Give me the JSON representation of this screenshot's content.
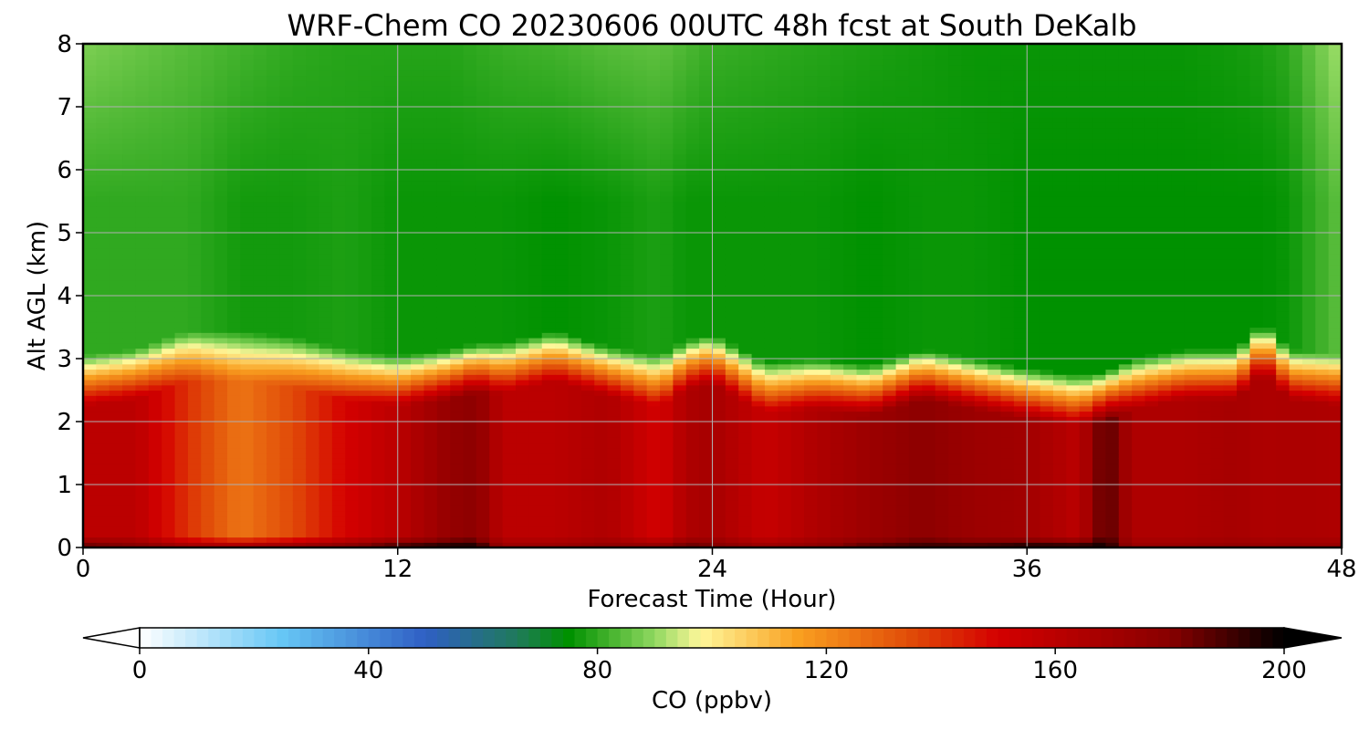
{
  "chart_data": {
    "type": "heatmap",
    "title": "WRF-Chem CO  20230606 00UTC 48h fcst at South DeKalb",
    "xlabel": "Forecast Time (Hour)",
    "ylabel": "Alt AGL (km)",
    "xlim": [
      0,
      48
    ],
    "ylim": [
      0,
      8
    ],
    "xticks": [
      0,
      12,
      24,
      36,
      48
    ],
    "yticks": [
      0,
      1,
      2,
      3,
      4,
      5,
      6,
      7,
      8
    ],
    "grid": true,
    "colorbar": {
      "label": "CO  (ppbv)",
      "orientation": "horizontal",
      "extend": "both",
      "range": [
        0,
        200
      ],
      "ticks": [
        0,
        40,
        80,
        120,
        160,
        200
      ],
      "stops": [
        {
          "v": 0,
          "c": "#ffffff"
        },
        {
          "v": 25,
          "c": "#66c6f5"
        },
        {
          "v": 50,
          "c": "#2f5fc4"
        },
        {
          "v": 66,
          "c": "#1f7a5a"
        },
        {
          "v": 75,
          "c": "#009100"
        },
        {
          "v": 90,
          "c": "#90d860"
        },
        {
          "v": 98,
          "c": "#fff79a"
        },
        {
          "v": 115,
          "c": "#f9a020"
        },
        {
          "v": 135,
          "c": "#e04a08"
        },
        {
          "v": 150,
          "c": "#d40000"
        },
        {
          "v": 180,
          "c": "#880000"
        },
        {
          "v": 200,
          "c": "#000000"
        }
      ]
    },
    "hours": [
      0,
      2,
      4,
      6,
      8,
      10,
      12,
      14,
      15,
      16,
      18,
      20,
      22,
      23,
      24,
      26,
      28,
      30,
      32,
      34,
      36,
      38,
      39,
      40,
      42,
      44,
      45,
      46,
      48
    ],
    "pbl_top_km": [
      2.6,
      2.7,
      3.0,
      3.0,
      2.9,
      2.7,
      2.6,
      2.7,
      2.8,
      2.8,
      3.0,
      2.75,
      2.6,
      2.85,
      2.95,
      2.5,
      2.55,
      2.45,
      2.7,
      2.55,
      2.4,
      2.3,
      2.35,
      2.55,
      2.7,
      2.7,
      3.15,
      2.7,
      2.6
    ],
    "levels_km": [
      0,
      0.25,
      0.5,
      1.0,
      1.5,
      2.0,
      2.5,
      3.0,
      3.5,
      4.0,
      5.0,
      6.0,
      7.0,
      8.0
    ],
    "co_ppbv_surface": [
      190,
      185,
      175,
      175,
      180,
      185,
      195,
      200,
      200,
      175,
      175,
      180,
      180,
      190,
      185,
      175,
      180,
      190,
      195,
      195,
      200,
      200,
      200,
      175,
      175,
      178,
      175,
      176,
      175
    ],
    "co_ppbv_boundary_layer": [
      160,
      160,
      140,
      125,
      135,
      150,
      160,
      175,
      178,
      160,
      160,
      165,
      150,
      165,
      168,
      155,
      165,
      172,
      178,
      172,
      170,
      160,
      190,
      165,
      165,
      168,
      165,
      166,
      165
    ],
    "co_ppbv_free_troposphere": [
      80,
      80,
      80,
      77,
      77,
      78,
      76,
      76,
      76,
      76,
      75,
      76,
      78,
      76,
      76,
      76,
      76,
      75,
      76,
      76,
      75,
      75,
      75,
      75,
      75,
      75,
      75,
      76,
      85
    ],
    "co_ppbv_upper": [
      88,
      86,
      84,
      82,
      80,
      79,
      79,
      79,
      80,
      81,
      82,
      84,
      85,
      83,
      81,
      80,
      79,
      78,
      77,
      76,
      76,
      76,
      76,
      76,
      76,
      77,
      78,
      80,
      92
    ]
  }
}
